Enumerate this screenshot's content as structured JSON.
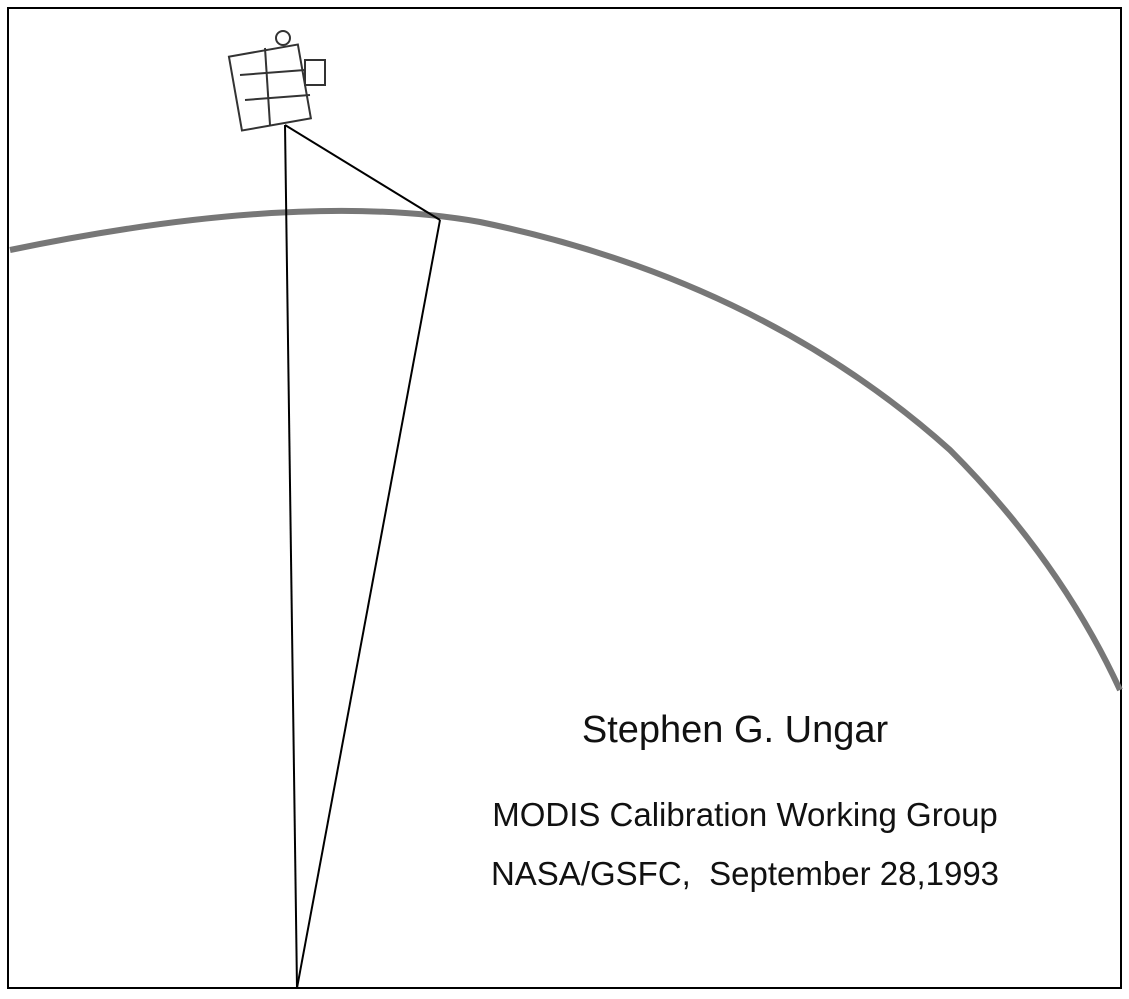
{
  "author": "Stephen G. Ungar",
  "lines": [
    "MODIS Calibration Working Group",
    "NASA/GSFC,  September 28,1993"
  ]
}
